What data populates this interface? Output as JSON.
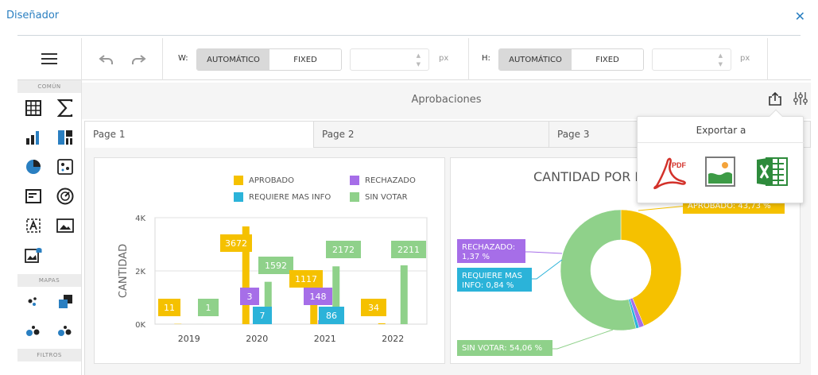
{
  "window": {
    "title": "Diseñador",
    "close_glyph": "✕"
  },
  "toolbar": {
    "w_label": "W:",
    "h_label": "H:",
    "w_options": [
      "AUTOMÁTICO",
      "FIXED"
    ],
    "h_options": [
      "AUTOMÁTICO",
      "FIXED"
    ],
    "w_selected": "AUTOMÁTICO",
    "h_selected": "AUTOMÁTICO",
    "w_value": "",
    "h_value": "",
    "unit": "px",
    "icons": [
      "menu-icon",
      "undo-icon",
      "redo-icon"
    ]
  },
  "sidebar": {
    "sections": [
      {
        "label": "COMÚN",
        "items": [
          "grid-icon",
          "sum-icon",
          "bar-chart-icon",
          "treemap-icon",
          "pie-chart-icon",
          "scatter-icon",
          "card-icon",
          "gauge-icon",
          "text-box-icon",
          "image-icon",
          "bound-image-icon"
        ]
      },
      {
        "label": "MAPAS",
        "items": [
          "dot-map-icon",
          "choropleth-map-icon",
          "bubble-map-icon",
          "pie-map-icon"
        ]
      },
      {
        "label": "FILTROS",
        "items": []
      }
    ]
  },
  "dashboard": {
    "title": "Aprobaciones",
    "tabs": [
      "Page 1",
      "Page 2",
      "Page 3"
    ],
    "active_tab": "Page 1",
    "icons": [
      "export-icon",
      "parameters-icon"
    ]
  },
  "export_popup": {
    "title": "Exportar a",
    "options": [
      "pdf-icon",
      "image-export-icon",
      "excel-icon"
    ]
  },
  "colors": {
    "aprobado": "#f5c100",
    "rechazado": "#a66ee8",
    "requiere": "#2bb3d9",
    "sin_votar": "#8fd18a",
    "accent": "#2a7fc1"
  },
  "chart_data": [
    {
      "type": "bar",
      "ylabel": "CANTIDAD",
      "categories": [
        "2019",
        "2020",
        "2021",
        "2022"
      ],
      "y_ticks": [
        "0K",
        "2K",
        "4K"
      ],
      "ylim": [
        0,
        4000
      ],
      "legend_position": "top",
      "series": [
        {
          "name": "APROBADO",
          "values": [
            11,
            3672,
            1117,
            34
          ]
        },
        {
          "name": "RECHAZADO",
          "values": [
            0,
            3,
            148,
            0
          ]
        },
        {
          "name": "REQUIERE MAS INFO",
          "values": [
            0,
            7,
            86,
            0
          ]
        },
        {
          "name": "SIN VOTAR",
          "values": [
            1,
            1592,
            2172,
            2211
          ]
        }
      ],
      "labels": {
        "aprobado": [
          "11",
          "3672",
          "1117",
          "34"
        ],
        "rechazado": [
          "3",
          "148"
        ],
        "requiere": [
          "7",
          "86"
        ],
        "sin_votar": [
          "1",
          "1592",
          "2172",
          "2211"
        ]
      }
    },
    {
      "type": "pie",
      "title": "CANTIDAD POR E",
      "slices": [
        {
          "name": "APROBADO",
          "value": 43.73,
          "label": "APROBADO: 43,73 %"
        },
        {
          "name": "RECHAZADO",
          "value": 1.37,
          "label": "RECHAZADO: 1,37 %"
        },
        {
          "name": "REQUIERE MAS INFO",
          "value": 0.84,
          "label": "REQUIERE MAS INFO: 0,84 %"
        },
        {
          "name": "SIN VOTAR",
          "value": 54.06,
          "label": "SIN VOTAR: 54,06 %"
        }
      ]
    }
  ]
}
